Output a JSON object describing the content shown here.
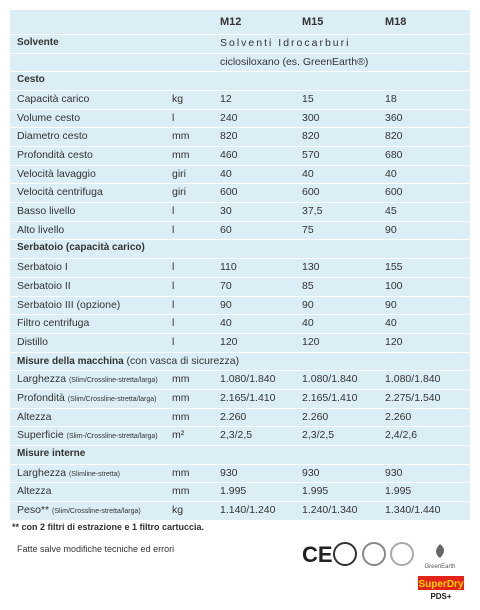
{
  "header": {
    "columns": [
      "M12",
      "M15",
      "M18"
    ]
  },
  "rows": [
    {
      "label": "Solvente",
      "heading": true,
      "span": "Solventi Idrocarburi"
    },
    {
      "span": "ciclosiloxano (es. GreenEarth®)"
    },
    {
      "label": "Cesto",
      "heading": true
    },
    {
      "label": "Capacità carico",
      "unit": "kg",
      "values": [
        "12",
        "15",
        "18"
      ]
    },
    {
      "label": "Volume cesto",
      "unit": "l",
      "values": [
        "240",
        "300",
        "360"
      ]
    },
    {
      "label": "Diametro cesto",
      "unit": "mm",
      "values": [
        "820",
        "820",
        "820"
      ]
    },
    {
      "label": "Profondità cesto",
      "unit": "mm",
      "values": [
        "460",
        "570",
        "680"
      ]
    },
    {
      "label": "Velocità lavaggio",
      "unit": "giri",
      "values": [
        "40",
        "40",
        "40"
      ]
    },
    {
      "label": "Velocità centrifuga",
      "unit": "giri",
      "values": [
        "600",
        "600",
        "600"
      ]
    },
    {
      "label": "Basso livello",
      "unit": "l",
      "values": [
        "30",
        "37,5",
        "45"
      ]
    },
    {
      "label": "Alto livello",
      "unit": "l",
      "values": [
        "60",
        "75",
        "90"
      ]
    },
    {
      "label": "Serbatoio (capacità carico)",
      "heading": true
    },
    {
      "label": "Serbatoio I",
      "unit": "l",
      "values": [
        "110",
        "130",
        "155"
      ]
    },
    {
      "label": "Serbatoio II",
      "unit": "l",
      "values": [
        "70",
        "85",
        "100"
      ]
    },
    {
      "label": "Serbatoio III (opzione)",
      "unit": "l",
      "values": [
        "90",
        "90",
        "90"
      ]
    },
    {
      "label": "Filtro centrifuga",
      "unit": "l",
      "values": [
        "40",
        "40",
        "40"
      ]
    },
    {
      "label": "Distillo",
      "unit": "l",
      "values": [
        "120",
        "120",
        "120"
      ]
    },
    {
      "label": "Misure della macchina",
      "heading": true,
      "note": "(con vasca di sicurezza)"
    },
    {
      "label": "Larghezza",
      "note": "(Slim/Crossline-stretta/larga)",
      "unit": "mm",
      "values": [
        "1.080/1.840",
        "1.080/1.840",
        "1.080/1.840"
      ]
    },
    {
      "label": "Profondità",
      "note": "(Slim/Crossline-stretta/larga)",
      "unit": "mm",
      "values": [
        "2.165/1.410",
        "2.165/1.410",
        "2.275/1.540"
      ]
    },
    {
      "label": "Altezza",
      "unit": "mm",
      "values": [
        "2.260",
        "2.260",
        "2.260"
      ]
    },
    {
      "label": "Superficie",
      "note": "(Slim-/Crossline-stretta/larga)",
      "unit": "m²",
      "values": [
        "2,3/2,5",
        "2,3/2,5",
        "2,4/2,6"
      ]
    },
    {
      "label": "Misure interne",
      "heading": true
    },
    {
      "label": "Larghezza",
      "note": "(Slimline-stretta)",
      "unit": "mm",
      "values": [
        "930",
        "930",
        "930"
      ]
    },
    {
      "label": "Altezza",
      "unit": "mm",
      "values": [
        "1.995",
        "1.995",
        "1.995"
      ]
    },
    {
      "label": "Peso**",
      "note": "(Slim/Crossline-stretta/larga)",
      "unit": "kg",
      "values": [
        "1.140/1.240",
        "1.240/1.340",
        "1.340/1.440"
      ]
    }
  ],
  "footnote": "** con 2 filtri di estrazione e 1 filtro cartuccia.",
  "disclaimer": "Fatte salve modifiche tecniche ed errori",
  "logos": {
    "ce": "CE",
    "greenearth": "GreenEarth",
    "brand": "SuperDry",
    "brand_suffix": "PDS+"
  }
}
